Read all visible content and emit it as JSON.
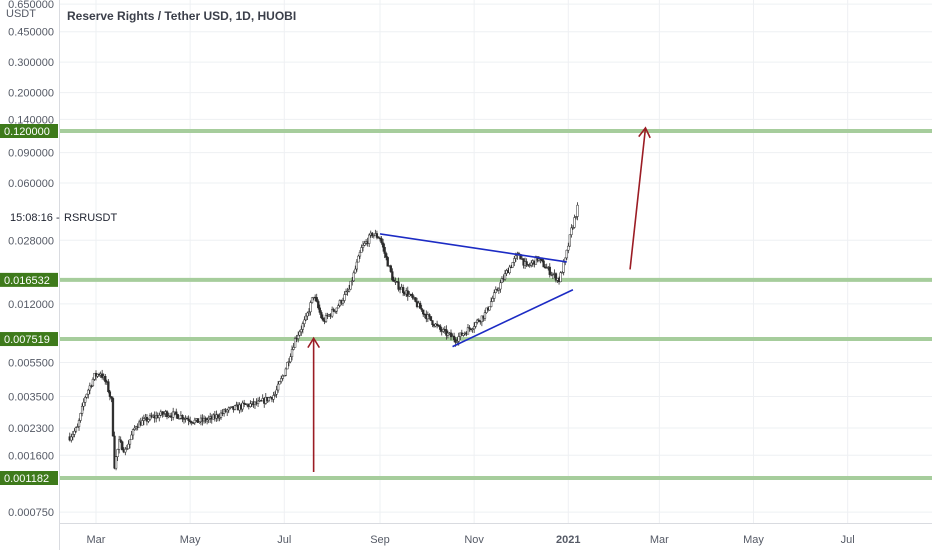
{
  "header": {
    "currency": "USDT",
    "title": "Reserve Rights / Tether USD, 1D, HUOBI"
  },
  "clock": {
    "time": "15:08:16",
    "symbol": "RSRUSDT"
  },
  "chart_data": {
    "type": "candlestick",
    "yscale": "log",
    "ylim": [
      0.00058,
      0.68
    ],
    "y_ticks": [
      "0.650000",
      "0.450000",
      "0.300000",
      "0.200000",
      "0.140000",
      "0.090000",
      "0.060000",
      "0.028000",
      "0.012000",
      "0.005500",
      "0.003500",
      "0.002300",
      "0.001600",
      "0.000750"
    ],
    "x_ticks": [
      "Mar",
      "May",
      "Jul",
      "Sep",
      "Nov",
      "2021",
      "Mar",
      "May",
      "Jul"
    ],
    "x_tick_dates": [
      "2020-03-01",
      "2020-05-01",
      "2020-07-01",
      "2020-09-01",
      "2020-11-01",
      "2021-01-01",
      "2021-03-01",
      "2021-05-01",
      "2021-07-01"
    ],
    "grid": true,
    "levels": [
      {
        "label": "0.120000",
        "value": 0.12
      },
      {
        "label": "0.016532",
        "value": 0.016532
      },
      {
        "label": "0.007519",
        "value": 0.007519
      },
      {
        "label": "0.001182",
        "value": 0.001182
      }
    ],
    "price_path": [
      [
        "2020-02-13",
        0.00205
      ],
      [
        "2020-02-18",
        0.0023
      ],
      [
        "2020-02-23",
        0.0035
      ],
      [
        "2020-02-29",
        0.0046
      ],
      [
        "2020-03-04",
        0.0048
      ],
      [
        "2020-03-08",
        0.0041
      ],
      [
        "2020-03-11",
        0.0033
      ],
      [
        "2020-03-13",
        0.0014
      ],
      [
        "2020-03-16",
        0.0019
      ],
      [
        "2020-03-20",
        0.0017
      ],
      [
        "2020-03-27",
        0.0024
      ],
      [
        "2020-04-04",
        0.0026
      ],
      [
        "2020-04-15",
        0.0028
      ],
      [
        "2020-04-25",
        0.0027
      ],
      [
        "2020-05-05",
        0.0025
      ],
      [
        "2020-05-15",
        0.0026
      ],
      [
        "2020-05-25",
        0.0029
      ],
      [
        "2020-06-05",
        0.0031
      ],
      [
        "2020-06-15",
        0.0032
      ],
      [
        "2020-06-25",
        0.0036
      ],
      [
        "2020-07-01",
        0.0048
      ],
      [
        "2020-07-08",
        0.0075
      ],
      [
        "2020-07-15",
        0.0098
      ],
      [
        "2020-07-20",
        0.0135
      ],
      [
        "2020-07-26",
        0.0095
      ],
      [
        "2020-08-04",
        0.0115
      ],
      [
        "2020-08-12",
        0.0145
      ],
      [
        "2020-08-20",
        0.025
      ],
      [
        "2020-08-27",
        0.0305
      ],
      [
        "2020-09-01",
        0.029
      ],
      [
        "2020-09-05",
        0.022
      ],
      [
        "2020-09-10",
        0.016
      ],
      [
        "2020-09-20",
        0.0135
      ],
      [
        "2020-09-30",
        0.0105
      ],
      [
        "2020-10-10",
        0.0085
      ],
      [
        "2020-10-20",
        0.0075
      ],
      [
        "2020-10-30",
        0.0088
      ],
      [
        "2020-11-08",
        0.0105
      ],
      [
        "2020-11-15",
        0.014
      ],
      [
        "2020-11-23",
        0.019
      ],
      [
        "2020-11-30",
        0.0235
      ],
      [
        "2020-12-05",
        0.0195
      ],
      [
        "2020-12-12",
        0.022
      ],
      [
        "2020-12-20",
        0.0185
      ],
      [
        "2020-12-26",
        0.0165
      ],
      [
        "2020-12-30",
        0.0215
      ],
      [
        "2021-01-03",
        0.032
      ],
      [
        "2021-01-07",
        0.043
      ]
    ]
  },
  "annotations": {
    "triangle_upper": [
      [
        "2020-09-01",
        0.0305
      ],
      [
        "2020-12-31",
        0.021
      ]
    ],
    "triangle_lower": [
      [
        "2020-10-18",
        0.0068
      ],
      [
        "2021-01-04",
        0.0145
      ]
    ],
    "arrow_1": {
      "from": [
        "2020-07-20",
        0.00128
      ],
      "to": [
        "2020-07-20",
        0.0076
      ],
      "color": "#9b1c24"
    },
    "arrow_2": {
      "from": [
        "2021-02-10",
        0.019
      ],
      "to": [
        "2021-02-20",
        0.125
      ],
      "color": "#9b1c24"
    },
    "colors": {
      "level": "#a6cd9c",
      "level_tag": "#3e7a1b",
      "trend": "#1c2bc4",
      "candle": "#2b2b2b"
    }
  }
}
